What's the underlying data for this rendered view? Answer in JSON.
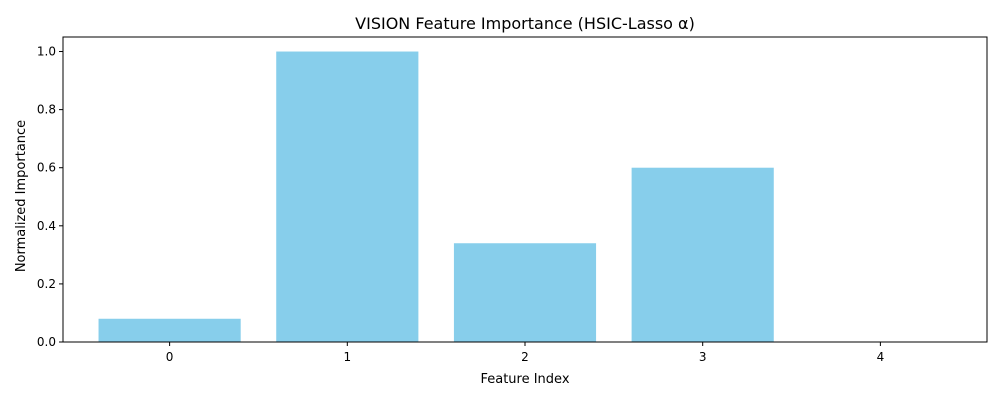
{
  "chart_data": {
    "type": "bar",
    "title": "VISION Feature Importance (HSIC-Lasso α)",
    "xlabel": "Feature Index",
    "ylabel": "Normalized Importance",
    "categories": [
      "0",
      "1",
      "2",
      "3",
      "4"
    ],
    "values": [
      0.08,
      1.0,
      0.34,
      0.6,
      0.0
    ],
    "ylim": [
      0,
      1.05
    ],
    "yticks": [
      "0.0",
      "0.2",
      "0.4",
      "0.6",
      "0.8",
      "1.0"
    ],
    "grid": false,
    "legend": "none",
    "bar_color": "#87ceeb",
    "axis_color": "#000000"
  }
}
